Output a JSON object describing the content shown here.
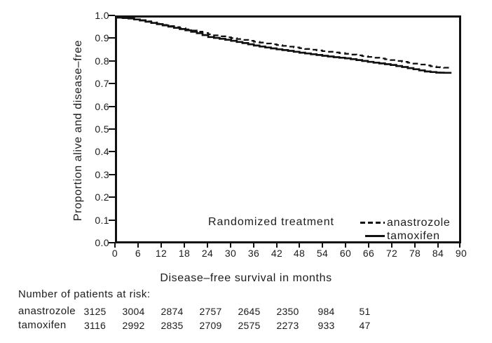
{
  "chart_data": {
    "type": "line",
    "title": "",
    "xlabel": "Disease–free survival in months",
    "ylabel": "Proportion alive and disease–free",
    "xlim": [
      0,
      90
    ],
    "ylim": [
      0.0,
      1.0
    ],
    "grid": false,
    "xticks": [
      "0",
      "6",
      "12",
      "18",
      "24",
      "30",
      "36",
      "42",
      "48",
      "54",
      "60",
      "66",
      "72",
      "78",
      "84",
      "90"
    ],
    "yticks": [
      "1.0",
      "0.9",
      "0.8",
      "0.7",
      "0.6",
      "0.5",
      "0.4",
      "0.3",
      "0.2",
      "0.1",
      "0.0"
    ],
    "legend": {
      "title": "Randomized treatment",
      "position": "inside-bottom-right",
      "entries": [
        {
          "label": "anastrozole",
          "line_style": "dashed"
        },
        {
          "label": "tamoxifen",
          "line_style": "solid"
        }
      ]
    },
    "series": [
      {
        "name": "anastrozole",
        "line_style": "dashed",
        "color": "#111111",
        "points": [
          [
            0,
            1.0
          ],
          [
            3,
            0.996
          ],
          [
            6,
            0.988
          ],
          [
            9,
            0.978
          ],
          [
            12,
            0.967
          ],
          [
            15,
            0.957
          ],
          [
            18,
            0.947
          ],
          [
            21,
            0.937
          ],
          [
            24,
            0.925
          ],
          [
            27,
            0.916
          ],
          [
            30,
            0.908
          ],
          [
            33,
            0.9
          ],
          [
            36,
            0.892
          ],
          [
            39,
            0.884
          ],
          [
            42,
            0.877
          ],
          [
            45,
            0.87
          ],
          [
            48,
            0.863
          ],
          [
            51,
            0.856
          ],
          [
            54,
            0.85
          ],
          [
            57,
            0.844
          ],
          [
            60,
            0.838
          ],
          [
            63,
            0.831
          ],
          [
            66,
            0.824
          ],
          [
            69,
            0.817
          ],
          [
            72,
            0.81
          ],
          [
            75,
            0.802
          ],
          [
            78,
            0.794
          ],
          [
            81,
            0.786
          ],
          [
            84,
            0.778
          ],
          [
            86,
            0.776
          ],
          [
            88,
            0.776
          ]
        ]
      },
      {
        "name": "tamoxifen",
        "line_style": "solid",
        "color": "#111111",
        "points": [
          [
            0,
            1.0
          ],
          [
            3,
            0.996
          ],
          [
            6,
            0.987
          ],
          [
            9,
            0.976
          ],
          [
            12,
            0.965
          ],
          [
            15,
            0.954
          ],
          [
            18,
            0.943
          ],
          [
            21,
            0.93
          ],
          [
            24,
            0.913
          ],
          [
            27,
            0.905
          ],
          [
            30,
            0.896
          ],
          [
            33,
            0.886
          ],
          [
            36,
            0.875
          ],
          [
            39,
            0.866
          ],
          [
            42,
            0.858
          ],
          [
            45,
            0.851
          ],
          [
            48,
            0.843
          ],
          [
            51,
            0.836
          ],
          [
            54,
            0.829
          ],
          [
            57,
            0.823
          ],
          [
            60,
            0.818
          ],
          [
            63,
            0.81
          ],
          [
            66,
            0.802
          ],
          [
            69,
            0.795
          ],
          [
            72,
            0.788
          ],
          [
            75,
            0.779
          ],
          [
            78,
            0.769
          ],
          [
            81,
            0.759
          ],
          [
            84,
            0.754
          ],
          [
            86,
            0.753
          ],
          [
            88,
            0.753
          ]
        ]
      }
    ]
  },
  "risk_table": {
    "title": "Number of patients at risk:",
    "rows": [
      {
        "label": "anastrozole",
        "values": [
          "3125",
          "3004",
          "2874",
          "2757",
          "2645",
          "2350",
          "984",
          "51"
        ]
      },
      {
        "label": "tamoxifen",
        "values": [
          "3116",
          "2992",
          "2835",
          "2709",
          "2575",
          "2273",
          "933",
          "47"
        ]
      }
    ]
  }
}
